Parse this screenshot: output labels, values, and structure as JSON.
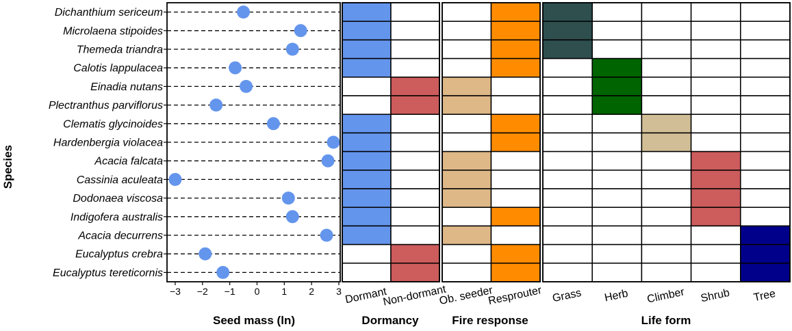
{
  "chart_data": {
    "type": "scatter",
    "ylabel": "Species",
    "species": [
      "Dichanthium sericeum",
      "Microlaena stipoides",
      "Themeda triandra",
      "Calotis lappulacea",
      "Einadia nutans",
      "Plectranthus parviflorus",
      "Clematis glycinoides",
      "Hardenbergia violacea",
      "Acacia falcata",
      "Cassinia aculeata",
      "Dodonaea viscosa",
      "Indigofera australis",
      "Acacia decurrens",
      "Eucalyptus crebra",
      "Eucalyptus tereticornis"
    ],
    "seed_mass": {
      "title": "Seed mass (ln)",
      "xlim": [
        -3.3,
        3.05
      ],
      "ticks": [
        -3,
        -2,
        -1,
        0,
        1,
        2,
        3
      ],
      "tick_labels": [
        "−3",
        "−2",
        "−1",
        "0",
        "1",
        "2",
        "3"
      ],
      "values": [
        -0.5,
        1.6,
        1.3,
        -0.8,
        -0.4,
        -1.5,
        0.6,
        2.8,
        2.6,
        -3.0,
        1.15,
        1.3,
        2.55,
        -1.9,
        -1.25
      ],
      "point_color": "#6495ED"
    },
    "dormancy": {
      "title": "Dormancy",
      "categories": [
        "Dormant",
        "Non-dormant"
      ],
      "colors": [
        "#6495ED",
        "#CD5C5C"
      ],
      "assignment": [
        0,
        0,
        0,
        0,
        1,
        1,
        0,
        0,
        0,
        0,
        0,
        0,
        0,
        1,
        1
      ]
    },
    "fire_response": {
      "title": "Fire response",
      "categories": [
        "Ob. seeder",
        "Resprouter"
      ],
      "colors": [
        "#DEB887",
        "#FF8C00"
      ],
      "assignment": [
        1,
        1,
        1,
        1,
        0,
        0,
        1,
        1,
        0,
        0,
        0,
        1,
        0,
        1,
        1
      ]
    },
    "life_form": {
      "title": "Life form",
      "categories": [
        "Grass",
        "Herb",
        "Climber",
        "Shrub",
        "Tree"
      ],
      "colors": [
        "#2F4F4F",
        "#006400",
        "#D2BE96",
        "#CD5C5C",
        "#00008B"
      ],
      "assignment": [
        0,
        0,
        0,
        1,
        1,
        1,
        2,
        2,
        3,
        3,
        3,
        3,
        4,
        4,
        4
      ]
    }
  }
}
